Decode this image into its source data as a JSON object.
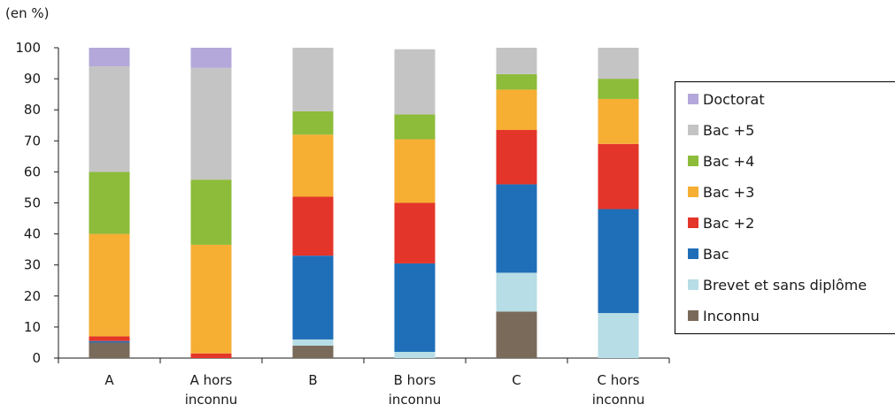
{
  "chart_data": {
    "type": "bar",
    "stacked": true,
    "unit_label": "(en %)",
    "categories": [
      [
        "A"
      ],
      [
        "A hors",
        "inconnu"
      ],
      [
        "B"
      ],
      [
        "B hors",
        "inconnu"
      ],
      [
        "C"
      ],
      [
        "C hors",
        "inconnu"
      ]
    ],
    "ylim": [
      0,
      100
    ],
    "yticks": [
      0,
      10,
      20,
      30,
      40,
      50,
      60,
      70,
      80,
      90,
      100
    ],
    "grid": false,
    "legend_position": "right",
    "series": [
      {
        "name": "Inconnu",
        "color": "#7a6a5a",
        "values": [
          5,
          0,
          4,
          0,
          15,
          0
        ]
      },
      {
        "name": "Brevet et sans diplôme",
        "color": "#b7dde6",
        "values": [
          0,
          0,
          2,
          2,
          12.5,
          14.5
        ]
      },
      {
        "name": "Bac",
        "color": "#1f6fb8",
        "values": [
          0.5,
          0,
          27,
          28.5,
          28.5,
          33.5
        ]
      },
      {
        "name": "Bac +2",
        "color": "#e4352a",
        "values": [
          1.5,
          1.5,
          19,
          19.5,
          17.5,
          21
        ]
      },
      {
        "name": "Bac +3",
        "color": "#f6ae33",
        "values": [
          33,
          35,
          20,
          20.5,
          13,
          14.5
        ]
      },
      {
        "name": "Bac +4",
        "color": "#8dbb3a",
        "values": [
          20,
          21,
          7.5,
          8,
          5,
          6.5
        ]
      },
      {
        "name": "Bac +5",
        "color": "#c4c4c4",
        "values": [
          34,
          36,
          20.5,
          21,
          8.5,
          10
        ]
      },
      {
        "name": "Doctorat",
        "color": "#b3a8d9",
        "values": [
          6,
          6.5,
          0,
          0,
          0,
          0
        ]
      }
    ],
    "legend_order": [
      "Doctorat",
      "Bac +5",
      "Bac +4",
      "Bac +3",
      "Bac +2",
      "Bac",
      "Brevet et sans diplôme",
      "Inconnu"
    ]
  }
}
